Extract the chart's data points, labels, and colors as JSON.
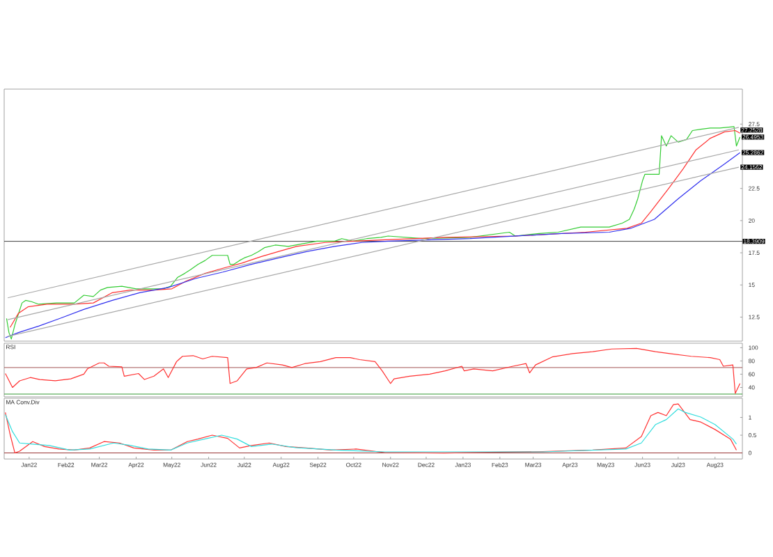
{
  "chart_data": [
    {
      "type": "line",
      "xlim": [
        "2021-12-11",
        "2023-08-24"
      ],
      "ylim": [
        10.63,
        30.22
      ],
      "yticks": [
        12.5,
        15,
        17.5,
        20,
        22.5,
        27.5
      ],
      "tick_labels": "y",
      "series": [
        {
          "color": "#33cc33",
          "x": [
            "2021-12-13",
            "2021-12-15",
            "2021-12-17",
            "2021-12-20",
            "2021-12-26",
            "2021-12-29",
            "2022-01-03",
            "2022-01-09",
            "2022-01-24",
            "2022-02-08",
            "2022-02-16",
            "2022-02-24",
            "2022-03-02",
            "2022-03-08",
            "2022-03-20",
            "2022-04-01",
            "2022-04-12",
            "2022-04-24",
            "2022-04-30",
            "2022-05-06",
            "2022-05-12",
            "2022-05-17",
            "2022-05-23",
            "2022-05-29",
            "2022-06-04",
            "2022-06-10",
            "2022-06-17",
            "2022-06-19",
            "2022-06-22",
            "2022-06-27",
            "2022-07-01",
            "2022-07-07",
            "2022-07-13",
            "2022-07-18",
            "2022-07-27",
            "2022-08-07",
            "2022-08-19",
            "2022-08-31",
            "2022-09-15",
            "2022-09-21",
            "2022-09-30",
            "2022-10-12",
            "2022-10-24",
            "2022-10-30",
            "2022-11-28",
            "2023-01-07",
            "2023-02-09",
            "2023-02-14",
            "2023-03-06",
            "2023-03-22",
            "2023-04-10",
            "2023-04-22",
            "2023-05-04",
            "2023-05-15",
            "2023-05-21",
            "2023-05-25",
            "2023-05-28",
            "2023-06-01",
            "2023-06-03",
            "2023-06-08",
            "2023-06-15",
            "2023-06-17",
            "2023-06-21",
            "2023-06-25",
            "2023-07-01",
            "2023-07-08",
            "2023-07-13",
            "2023-07-20",
            "2023-07-28",
            "2023-08-05",
            "2023-08-17",
            "2023-08-19",
            "2023-08-22"
          ],
          "values": [
            12.4,
            11.3,
            10.8,
            11.9,
            13.6,
            13.8,
            13.7,
            13.5,
            13.6,
            13.6,
            14.2,
            14.1,
            14.6,
            14.8,
            14.9,
            14.7,
            14.7,
            14.7,
            14.9,
            15.6,
            15.9,
            16.2,
            16.6,
            16.9,
            17.3,
            17.3,
            17.3,
            16.6,
            16.6,
            16.9,
            17.1,
            17.3,
            17.6,
            17.9,
            18.1,
            18.0,
            18.2,
            18.4,
            18.4,
            18.6,
            18.4,
            18.6,
            18.7,
            18.8,
            18.6,
            18.7,
            19.1,
            18.8,
            19.0,
            19.1,
            19.5,
            19.5,
            19.5,
            19.8,
            20.1,
            20.9,
            21.7,
            23.1,
            23.6,
            23.6,
            23.6,
            26.6,
            25.8,
            26.6,
            26.1,
            26.3,
            27.0,
            27.1,
            27.2,
            27.2,
            27.3,
            25.8,
            26.4953
          ],
          "value_labels": [
            null,
            null,
            null,
            null,
            null,
            null,
            null,
            null,
            null,
            null,
            null,
            null,
            null,
            null,
            null,
            null,
            null,
            null,
            null,
            null,
            null,
            null,
            null,
            null,
            null,
            null,
            null,
            null,
            null,
            null,
            null,
            null,
            null,
            null,
            null,
            null,
            null,
            null,
            null,
            null,
            null,
            null,
            null,
            null,
            null,
            null,
            null,
            null,
            null,
            null,
            null,
            null,
            null,
            null,
            null,
            null,
            null,
            null,
            null,
            null,
            null,
            null,
            null,
            null,
            null,
            null,
            null,
            null,
            null,
            null,
            null,
            null,
            "26.4953"
          ]
        },
        {
          "color": "#ff3030",
          "x": [
            "2021-12-16",
            "2021-12-23",
            "2021-12-31",
            "2022-01-16",
            "2022-02-08",
            "2022-02-24",
            "2022-03-12",
            "2022-03-27",
            "2022-04-16",
            "2022-05-01",
            "2022-05-13",
            "2022-05-29",
            "2022-06-13",
            "2022-06-29",
            "2022-07-15",
            "2022-07-30",
            "2022-08-14",
            "2022-09-07",
            "2022-09-30",
            "2022-10-24",
            "2022-12-18",
            "2023-02-14",
            "2023-04-14",
            "2023-05-19",
            "2023-05-31",
            "2023-06-08",
            "2023-06-23",
            "2023-07-05",
            "2023-07-16",
            "2023-07-28",
            "2023-08-09",
            "2023-08-18",
            "2023-08-22"
          ],
          "values": [
            11.7,
            12.8,
            13.3,
            13.5,
            13.5,
            13.6,
            14.4,
            14.6,
            14.6,
            14.7,
            15.3,
            15.9,
            16.3,
            16.7,
            17.2,
            17.6,
            18.0,
            18.3,
            18.4,
            18.5,
            18.7,
            18.8,
            19.1,
            19.4,
            19.8,
            20.7,
            22.5,
            24.0,
            25.5,
            26.4,
            26.9,
            27.0,
            26.8
          ]
        },
        {
          "color": "#3030ee",
          "x": [
            "2021-12-12",
            "2021-12-23",
            "2022-01-09",
            "2022-01-27",
            "2022-02-16",
            "2022-03-12",
            "2022-04-04",
            "2022-04-28",
            "2022-05-21",
            "2022-06-13",
            "2022-07-07",
            "2022-07-30",
            "2022-08-23",
            "2022-09-15",
            "2022-10-08",
            "2022-10-30",
            "2023-01-07",
            "2023-03-25",
            "2023-05-04",
            "2023-05-22",
            "2023-06-11",
            "2023-07-01",
            "2023-07-20",
            "2023-08-09",
            "2023-08-22"
          ],
          "values": [
            10.9,
            11.3,
            11.8,
            12.4,
            13.1,
            13.8,
            14.4,
            14.8,
            15.5,
            16.0,
            16.6,
            17.1,
            17.6,
            18.0,
            18.3,
            18.4,
            18.6,
            19.0,
            19.1,
            19.4,
            20.1,
            21.7,
            23.1,
            24.4,
            25.2862
          ],
          "value_labels": [
            null,
            null,
            null,
            null,
            null,
            null,
            null,
            null,
            null,
            null,
            null,
            null,
            null,
            null,
            null,
            null,
            null,
            null,
            null,
            null,
            null,
            null,
            null,
            null,
            "25.2862"
          ]
        },
        {
          "color": "#a8a8a8",
          "x": [
            "2021-12-14",
            "2023-08-21"
          ],
          "values": [
            14.0,
            27.2528
          ],
          "value_labels": [
            null,
            "27.2528"
          ]
        },
        {
          "color": "#a8a8a8",
          "x": [
            "2021-12-14",
            "2023-08-21"
          ],
          "values": [
            12.3,
            25.5
          ]
        },
        {
          "color": "#a8a8a8",
          "x": [
            "2021-12-14",
            "2023-08-21"
          ],
          "values": [
            11.0,
            24.1562
          ],
          "value_labels": [
            null,
            "24.1562"
          ]
        }
      ],
      "ref_lines": [
        {
          "axis": "y",
          "value": 18.3909,
          "label": "18.3909",
          "color": "#404040"
        }
      ]
    },
    {
      "type": "line",
      "title": "RSI",
      "xlim": [
        "2021-12-11",
        "2023-08-24"
      ],
      "ylim": [
        25.8,
        106.7
      ],
      "yticks": [
        40,
        60,
        80,
        100
      ],
      "tick_labels": "y",
      "series": [
        {
          "color": "#ff3030",
          "x": [
            "2021-12-12",
            "2021-12-18",
            "2021-12-24",
            "2022-01-02",
            "2022-01-10",
            "2022-01-23",
            "2022-02-05",
            "2022-02-16",
            "2022-02-19",
            "2022-03-01",
            "2022-03-05",
            "2022-03-09",
            "2022-03-20",
            "2022-03-22",
            "2022-04-03",
            "2022-04-08",
            "2022-04-16",
            "2022-04-24",
            "2022-04-28",
            "2022-05-05",
            "2022-05-10",
            "2022-05-19",
            "2022-05-27",
            "2022-06-04",
            "2022-06-17",
            "2022-06-19",
            "2022-06-25",
            "2022-07-03",
            "2022-07-11",
            "2022-07-20",
            "2022-08-02",
            "2022-08-10",
            "2022-08-21",
            "2022-09-03",
            "2022-09-16",
            "2022-09-28",
            "2022-10-06",
            "2022-10-19",
            "2022-10-25",
            "2022-11-01",
            "2022-11-04",
            "2022-11-17",
            "2022-12-04",
            "2022-12-17",
            "2022-12-31",
            "2023-01-02",
            "2023-01-10",
            "2023-01-26",
            "2023-02-12",
            "2023-02-23",
            "2023-02-26",
            "2023-03-03",
            "2023-03-17",
            "2023-04-03",
            "2023-04-20",
            "2023-05-06",
            "2023-05-27",
            "2023-06-12",
            "2023-06-24",
            "2023-07-12",
            "2023-07-28",
            "2023-08-05",
            "2023-08-08",
            "2023-08-16",
            "2023-08-18",
            "2023-08-22"
          ],
          "values": [
            61,
            40,
            50,
            55,
            52,
            50,
            53,
            60,
            68,
            77,
            77,
            72,
            71,
            57,
            61,
            52,
            57,
            68,
            55,
            79,
            87,
            88,
            83,
            87,
            85,
            46,
            50,
            68,
            70,
            77,
            74,
            70,
            76,
            79,
            85,
            85,
            82,
            79,
            65,
            46,
            53,
            57,
            60,
            65,
            72,
            65,
            68,
            65,
            72,
            76,
            62,
            74,
            86,
            91,
            94,
            98,
            99,
            94,
            91,
            87,
            85,
            82,
            72,
            74,
            31,
            46
          ]
        }
      ],
      "ref_lines": [
        {
          "axis": "y",
          "value": 70,
          "color": "#a05050"
        },
        {
          "axis": "y",
          "value": 30,
          "color": "#339933"
        }
      ]
    },
    {
      "type": "line",
      "title": "MA Conv.Div",
      "xlim": [
        "2021-12-11",
        "2023-08-24"
      ],
      "ylim": [
        -0.17,
        1.54
      ],
      "yticks": [
        0,
        0.5,
        1
      ],
      "xticks": [
        {
          "value": "2022-01-01",
          "label": "Jan22"
        },
        {
          "value": "2022-02-01",
          "label": "Feb22"
        },
        {
          "value": "2022-03-01",
          "label": "Mar22"
        },
        {
          "value": "2022-04-01",
          "label": "Apr22"
        },
        {
          "value": "2022-05-01",
          "label": "May22"
        },
        {
          "value": "2022-06-01",
          "label": "Jun22"
        },
        {
          "value": "2022-07-01",
          "label": "Jul22"
        },
        {
          "value": "2022-08-01",
          "label": "Aug22"
        },
        {
          "value": "2022-09-01",
          "label": "Sep22"
        },
        {
          "value": "2022-10-01",
          "label": "Oct22"
        },
        {
          "value": "2022-11-01",
          "label": "Nov22"
        },
        {
          "value": "2022-12-01",
          "label": "Dec22"
        },
        {
          "value": "2023-01-01",
          "label": "Jan23"
        },
        {
          "value": "2023-02-01",
          "label": "Feb23"
        },
        {
          "value": "2023-03-01",
          "label": "Mar23"
        },
        {
          "value": "2023-04-01",
          "label": "Apr23"
        },
        {
          "value": "2023-05-01",
          "label": "May23"
        },
        {
          "value": "2023-06-01",
          "label": "Jun23"
        },
        {
          "value": "2023-07-01",
          "label": "Jul23"
        },
        {
          "value": "2023-08-01",
          "label": "Aug23"
        }
      ],
      "series": [
        {
          "color": "#ff3030",
          "x": [
            "2021-12-12",
            "2021-12-16",
            "2021-12-20",
            "2021-12-24",
            "2022-01-04",
            "2022-01-14",
            "2022-01-26",
            "2022-02-08",
            "2022-02-21",
            "2022-03-05",
            "2022-03-18",
            "2022-03-30",
            "2022-04-16",
            "2022-04-30",
            "2022-05-14",
            "2022-05-23",
            "2022-06-04",
            "2022-06-17",
            "2022-06-27",
            "2022-07-07",
            "2022-07-22",
            "2022-08-05",
            "2022-08-22",
            "2022-09-12",
            "2022-10-03",
            "2022-10-27",
            "2022-12-16",
            "2023-03-09",
            "2023-04-20",
            "2023-05-18",
            "2023-05-31",
            "2023-06-08",
            "2023-06-14",
            "2023-06-21",
            "2023-06-27",
            "2023-07-01",
            "2023-07-11",
            "2023-07-20",
            "2023-08-01",
            "2023-08-14",
            "2023-08-19"
          ],
          "values": [
            1.14,
            0.52,
            0.0,
            0.05,
            0.32,
            0.18,
            0.11,
            0.08,
            0.14,
            0.32,
            0.28,
            0.14,
            0.08,
            0.08,
            0.32,
            0.39,
            0.5,
            0.41,
            0.14,
            0.21,
            0.28,
            0.18,
            0.14,
            0.08,
            0.11,
            0.01,
            0.0,
            0.04,
            0.08,
            0.14,
            0.46,
            1.05,
            1.14,
            1.05,
            1.36,
            1.38,
            0.94,
            0.87,
            0.66,
            0.39,
            0.08
          ]
        },
        {
          "color": "#30dddd",
          "x": [
            "2021-12-12",
            "2021-12-18",
            "2021-12-24",
            "2022-01-04",
            "2022-01-18",
            "2022-02-04",
            "2022-02-21",
            "2022-03-13",
            "2022-03-26",
            "2022-04-11",
            "2022-04-30",
            "2022-05-14",
            "2022-05-31",
            "2022-06-12",
            "2022-06-25",
            "2022-07-07",
            "2022-07-24",
            "2022-08-13",
            "2022-09-16",
            "2022-10-27",
            "2023-03-09",
            "2023-05-18",
            "2023-05-31",
            "2023-06-12",
            "2023-06-21",
            "2023-07-01",
            "2023-07-07",
            "2023-07-20",
            "2023-08-01",
            "2023-08-16",
            "2023-08-19"
          ],
          "values": [
            1.08,
            0.6,
            0.28,
            0.25,
            0.21,
            0.08,
            0.11,
            0.28,
            0.22,
            0.11,
            0.08,
            0.28,
            0.41,
            0.5,
            0.39,
            0.18,
            0.25,
            0.15,
            0.08,
            0.03,
            0.03,
            0.11,
            0.28,
            0.8,
            0.94,
            1.24,
            1.14,
            1.01,
            0.8,
            0.39,
            0.25
          ]
        }
      ],
      "ref_lines": [
        {
          "axis": "y",
          "value": 0,
          "color": "#993333"
        }
      ]
    }
  ]
}
